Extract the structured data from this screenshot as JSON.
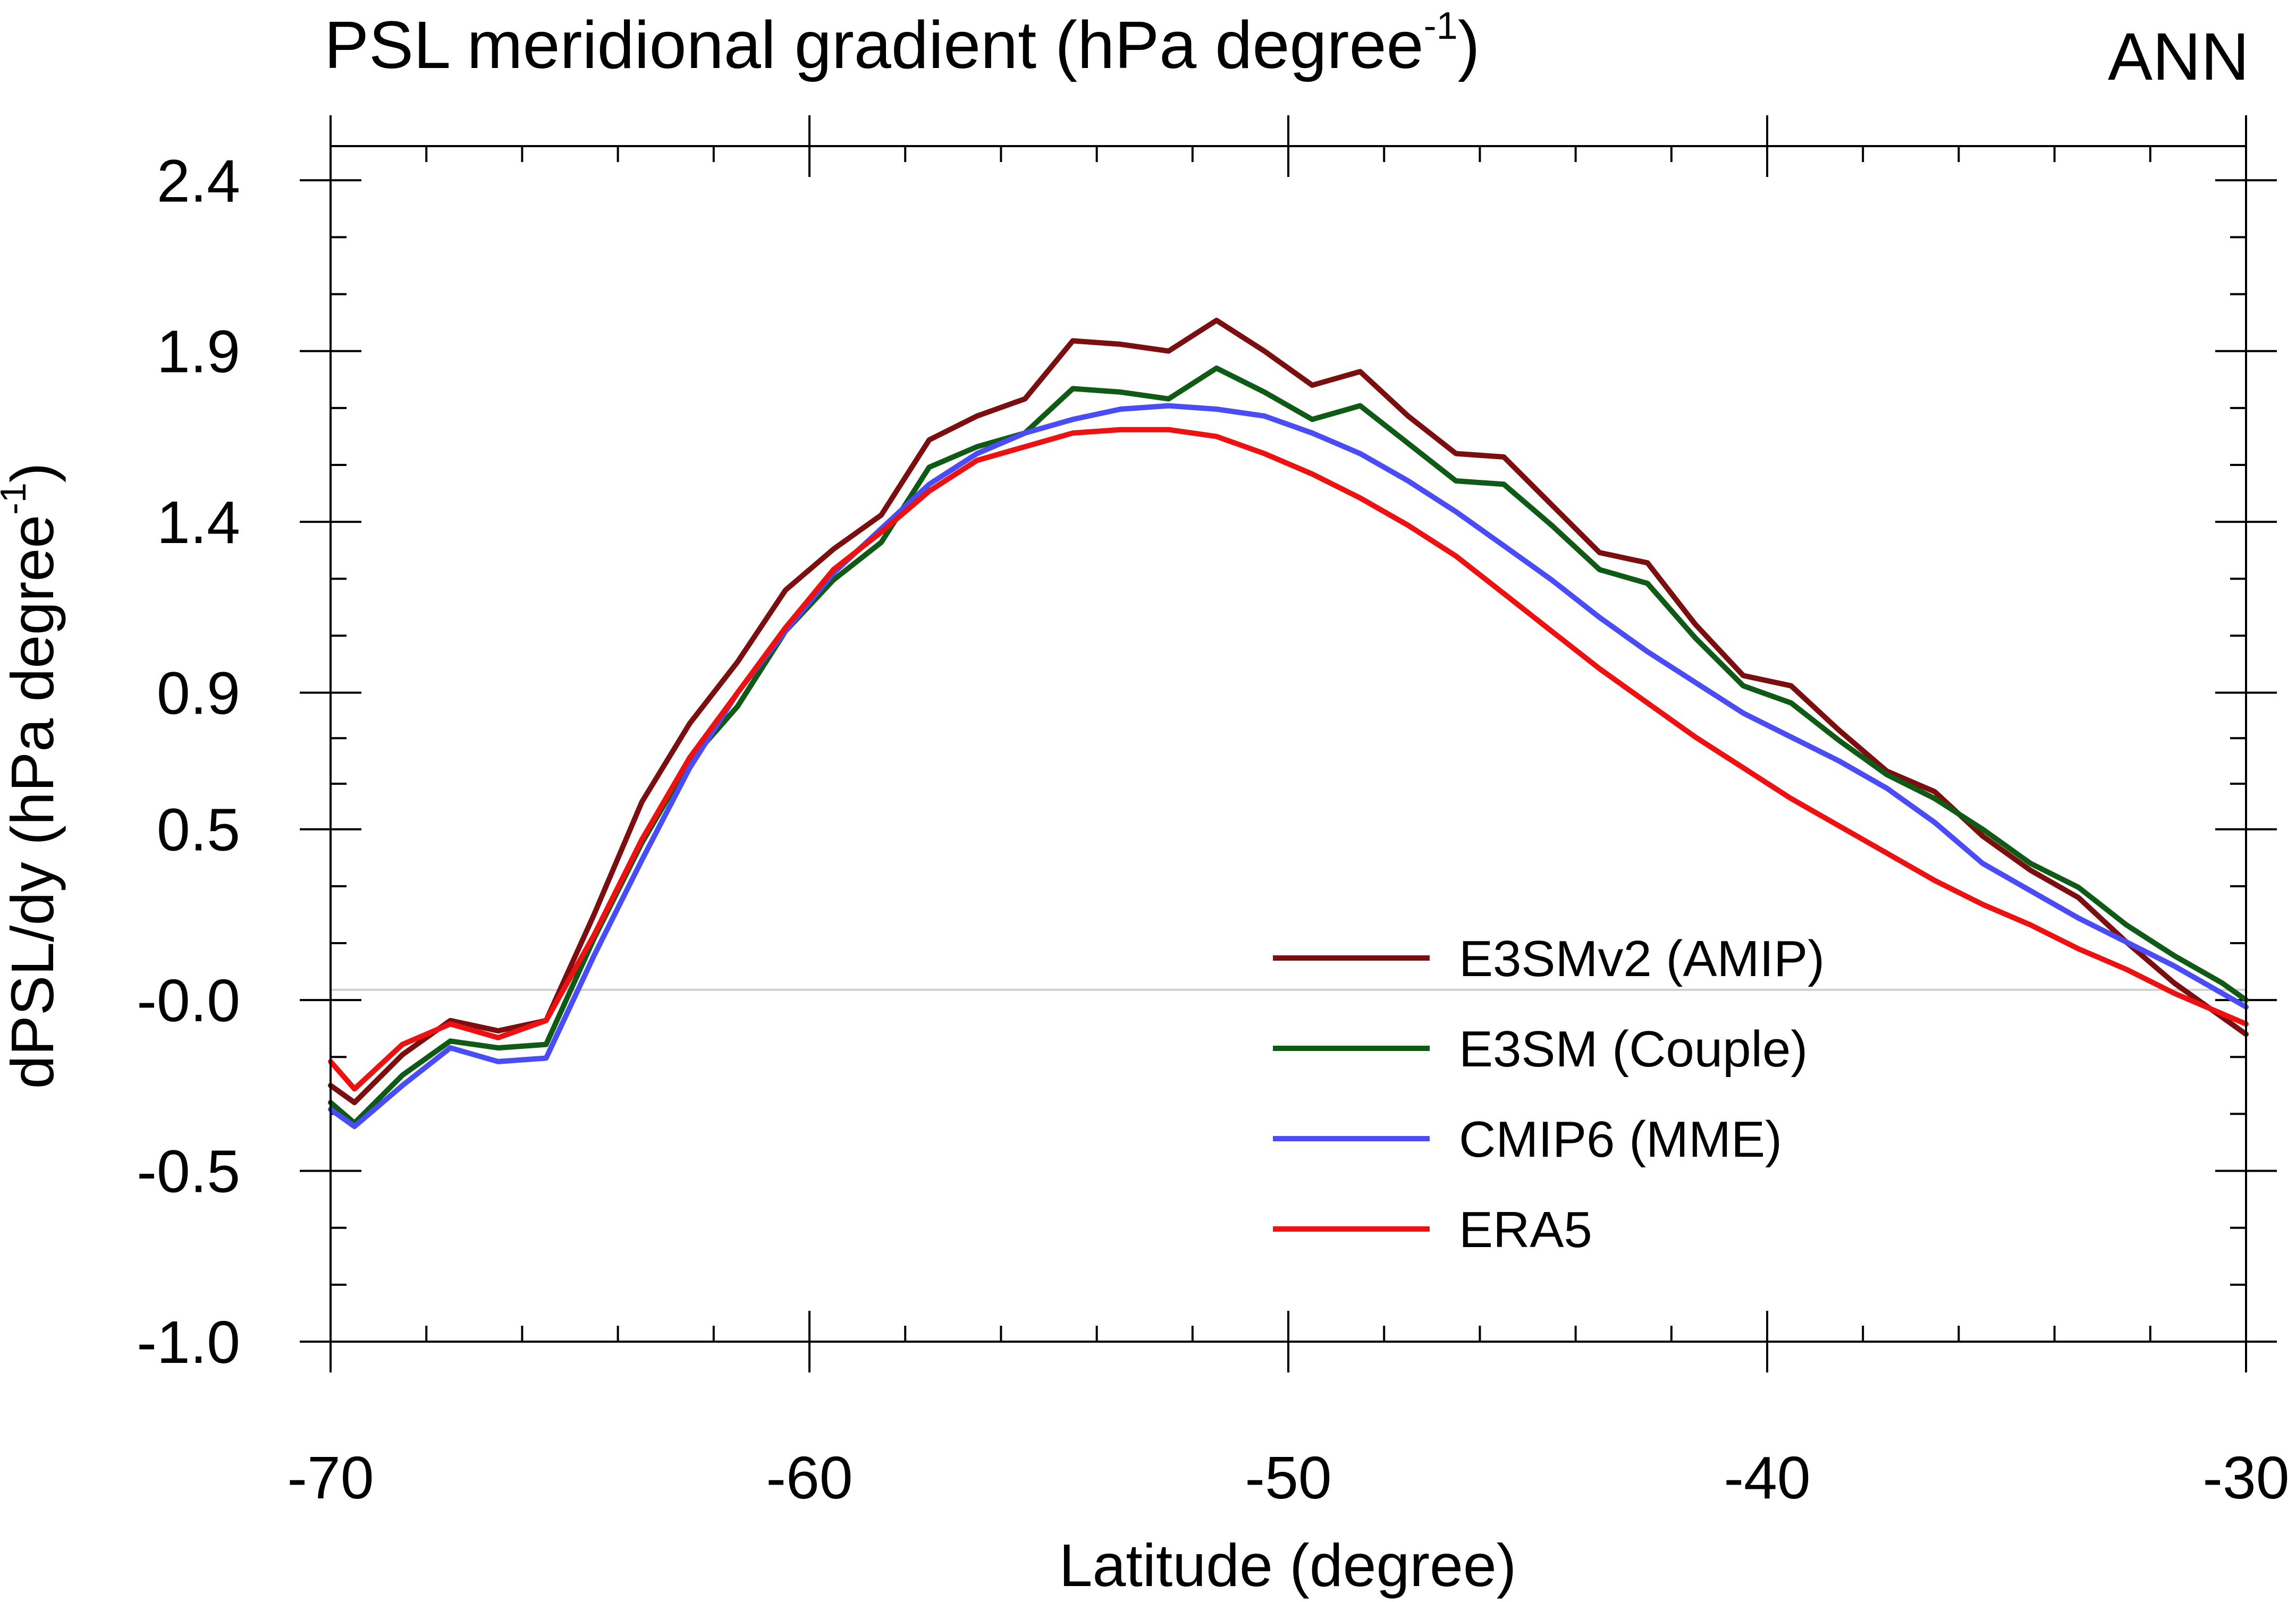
{
  "chart_data": {
    "type": "line",
    "title": "PSL meridional gradient (hPa degree",
    "title_sup": "-1",
    "title_close": ")",
    "season_label": "ANN",
    "xlabel": "Latitude (degree)",
    "ylabel": "dPSL/dy (hPa degree",
    "ylabel_sup": "-1",
    "ylabel_close": ")",
    "xlim": [
      -70,
      -30
    ],
    "ylim": [
      -1.0,
      2.5
    ],
    "xticks": [
      -70,
      -60,
      -50,
      -40,
      -30
    ],
    "xtick_labels": [
      "-70",
      "-60",
      "-50",
      "-40",
      "-30"
    ],
    "yticks": [
      -1.0,
      -0.5,
      0.0,
      0.5,
      0.9,
      1.4,
      1.9,
      2.4
    ],
    "ytick_labels": [
      "-1.0",
      "-0.5",
      "-0.0",
      "0.5",
      "0.9",
      "1.4",
      "1.9",
      "2.4"
    ],
    "reference_line": 0.03,
    "legend_position": "lower-right",
    "x": [
      -70,
      -69.5,
      -68.5,
      -67.5,
      -66.5,
      -65.5,
      -64.5,
      -63.5,
      -62.5,
      -61.5,
      -60.5,
      -59.5,
      -58.5,
      -57.5,
      -56.5,
      -55.5,
      -54.5,
      -53.5,
      -52.5,
      -51.5,
      -50.5,
      -49.5,
      -48.5,
      -47.5,
      -46.5,
      -45.5,
      -44.5,
      -43.5,
      -42.5,
      -41.5,
      -40.5,
      -39.5,
      -38.5,
      -37.5,
      -36.5,
      -35.5,
      -34.5,
      -33.5,
      -32.5,
      -31.5,
      -30.5,
      -30
    ],
    "series": [
      {
        "name": "E3SMv2 (AMIP)",
        "color": "#7b0e0e",
        "values": [
          -0.25,
          -0.3,
          -0.16,
          -0.06,
          -0.09,
          -0.06,
          0.25,
          0.58,
          0.81,
          0.99,
          1.2,
          1.32,
          1.42,
          1.64,
          1.71,
          1.76,
          1.93,
          1.92,
          1.9,
          1.99,
          1.9,
          1.8,
          1.84,
          1.71,
          1.6,
          1.59,
          1.45,
          1.31,
          1.28,
          1.1,
          0.95,
          0.92,
          0.79,
          0.67,
          0.61,
          0.48,
          0.38,
          0.3,
          0.17,
          0.05,
          -0.05,
          -0.1
        ]
      },
      {
        "name": "E3SM (Couple)",
        "color": "#0f5a14",
        "values": [
          -0.3,
          -0.36,
          -0.22,
          -0.12,
          -0.14,
          -0.13,
          0.18,
          0.46,
          0.7,
          0.86,
          1.08,
          1.23,
          1.34,
          1.56,
          1.62,
          1.66,
          1.79,
          1.78,
          1.76,
          1.85,
          1.78,
          1.7,
          1.74,
          1.63,
          1.52,
          1.51,
          1.39,
          1.26,
          1.22,
          1.06,
          0.92,
          0.87,
          0.76,
          0.66,
          0.59,
          0.5,
          0.4,
          0.33,
          0.22,
          0.13,
          0.05,
          0.0
        ]
      },
      {
        "name": "CMIP6 (MME)",
        "color": "#4a4cf5",
        "values": [
          -0.32,
          -0.37,
          -0.25,
          -0.14,
          -0.18,
          -0.17,
          0.13,
          0.41,
          0.68,
          0.9,
          1.08,
          1.25,
          1.38,
          1.51,
          1.6,
          1.66,
          1.7,
          1.73,
          1.74,
          1.73,
          1.71,
          1.66,
          1.6,
          1.52,
          1.43,
          1.33,
          1.23,
          1.12,
          1.02,
          0.93,
          0.84,
          0.77,
          0.7,
          0.62,
          0.52,
          0.4,
          0.32,
          0.24,
          0.17,
          0.1,
          0.02,
          -0.02
        ]
      },
      {
        "name": "ERA5",
        "color": "#ee1111",
        "values": [
          -0.18,
          -0.26,
          -0.13,
          -0.07,
          -0.11,
          -0.06,
          0.19,
          0.47,
          0.71,
          0.9,
          1.09,
          1.26,
          1.37,
          1.49,
          1.58,
          1.62,
          1.66,
          1.67,
          1.67,
          1.65,
          1.6,
          1.54,
          1.47,
          1.39,
          1.3,
          1.19,
          1.08,
          0.97,
          0.87,
          0.77,
          0.68,
          0.59,
          0.51,
          0.43,
          0.35,
          0.28,
          0.22,
          0.15,
          0.09,
          0.02,
          -0.04,
          -0.07
        ]
      }
    ]
  }
}
